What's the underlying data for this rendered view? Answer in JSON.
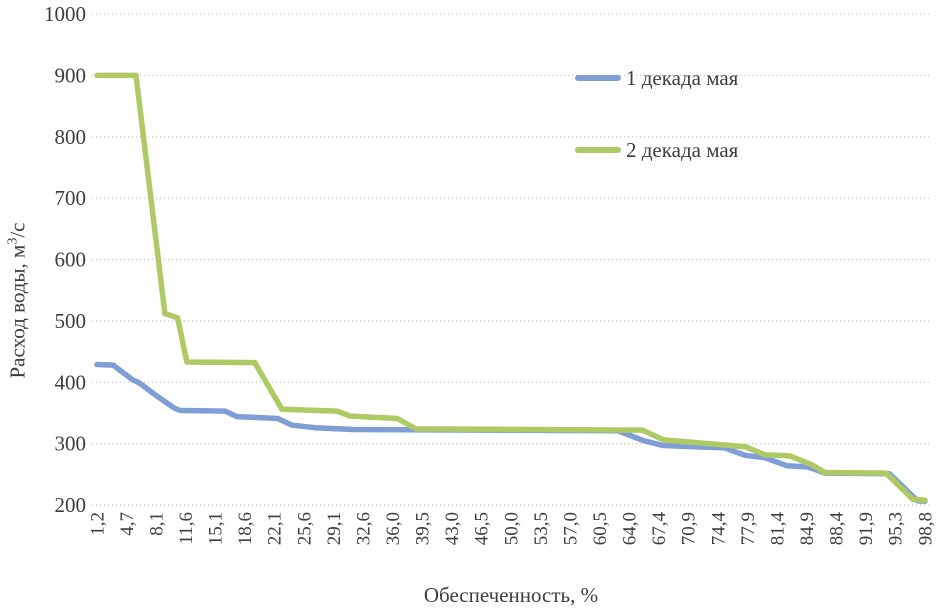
{
  "chart_data": {
    "type": "line",
    "title": "",
    "xlabel": "Обеспеченность, %",
    "ylabel": "Расход воды, м3/с",
    "ylabel_parts": {
      "prefix": "Расход воды, м",
      "sup": "3",
      "suffix": "/с"
    },
    "xlim": [
      1.2,
      98.8
    ],
    "ylim": [
      200,
      1000
    ],
    "y_ticks": [
      200,
      300,
      400,
      500,
      600,
      700,
      800,
      900,
      1000
    ],
    "x_tick_labels": [
      "1,2",
      "4,7",
      "8,1",
      "11,6",
      "15,1",
      "18,6",
      "22,1",
      "25,6",
      "29,1",
      "32,6",
      "36,0",
      "39,5",
      "43,0",
      "46,5",
      "50,0",
      "53,5",
      "57,0",
      "60,5",
      "64,0",
      "67,4",
      "70,9",
      "74,4",
      "77,9",
      "81,4",
      "84,9",
      "88,4",
      "91,9",
      "95,3",
      "98,8"
    ],
    "grid": "horizontal dotted gridlines, no axis lines, no plot border",
    "legend_position": "inside upper right, no border",
    "series": [
      {
        "name": "1 декада мая",
        "color": "#7F9ED6",
        "points": [
          [
            1.2,
            429
          ],
          [
            3.1,
            428
          ],
          [
            5.4,
            404
          ],
          [
            6.2,
            399
          ],
          [
            8.0,
            380
          ],
          [
            10.3,
            358
          ],
          [
            11.0,
            354
          ],
          [
            16.3,
            353
          ],
          [
            17.7,
            344
          ],
          [
            22.5,
            341
          ],
          [
            24.2,
            330
          ],
          [
            26.9,
            326
          ],
          [
            31.4,
            323
          ],
          [
            62.6,
            321
          ],
          [
            65.6,
            305
          ],
          [
            67.9,
            297
          ],
          [
            75.2,
            293
          ],
          [
            77.6,
            281
          ],
          [
            79.9,
            277
          ],
          [
            82.5,
            264
          ],
          [
            85.0,
            262
          ],
          [
            87.0,
            252
          ],
          [
            94.6,
            251
          ],
          [
            97.9,
            207
          ],
          [
            98.8,
            206
          ]
        ]
      },
      {
        "name": "2 декада мая",
        "color": "#AFC964",
        "points": [
          [
            1.2,
            900
          ],
          [
            5.8,
            900
          ],
          [
            9.2,
            512
          ],
          [
            10.7,
            505
          ],
          [
            11.8,
            433
          ],
          [
            19.8,
            432
          ],
          [
            23.0,
            356
          ],
          [
            29.5,
            353
          ],
          [
            31.0,
            345
          ],
          [
            36.6,
            341
          ],
          [
            38.8,
            324
          ],
          [
            65.5,
            322
          ],
          [
            68.0,
            306
          ],
          [
            77.6,
            295
          ],
          [
            79.9,
            282
          ],
          [
            82.9,
            280
          ],
          [
            85.4,
            266
          ],
          [
            87.0,
            253
          ],
          [
            94.2,
            252
          ],
          [
            97.4,
            209
          ],
          [
            98.8,
            208
          ]
        ]
      }
    ]
  },
  "colors": {
    "background": "#ffffff",
    "text": "#3d3d3d",
    "gridline": "#b9b9b9",
    "series_1": "#7F9ED6",
    "series_2": "#AFC964"
  }
}
